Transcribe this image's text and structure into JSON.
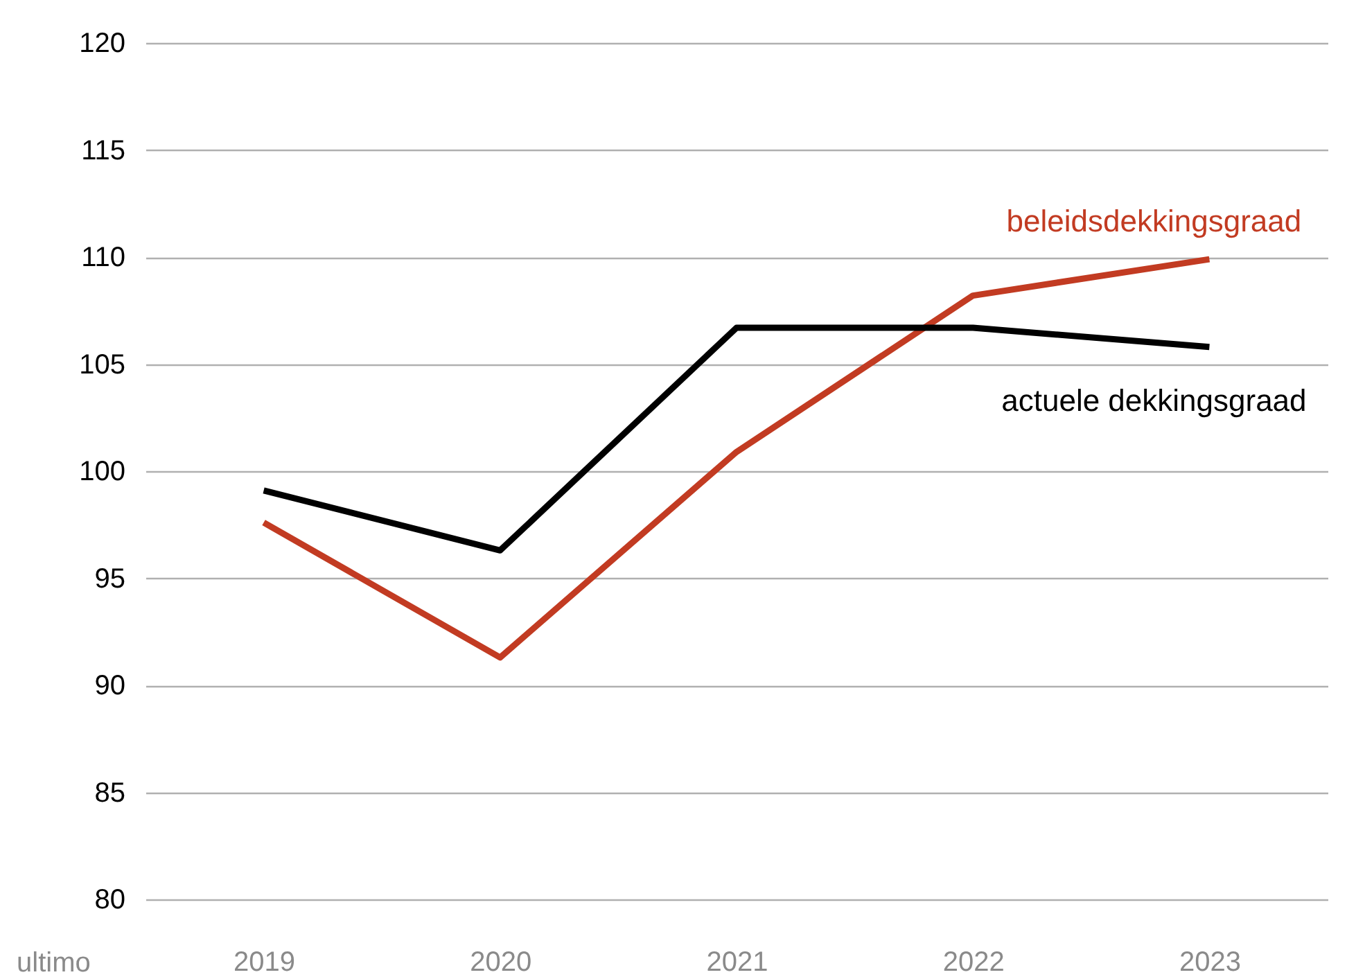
{
  "chart_data": {
    "type": "line",
    "categories": [
      "2019",
      "2020",
      "2021",
      "2022",
      "2023"
    ],
    "series": [
      {
        "name": "beleidsdekkingsgraad",
        "color": "#c23b22",
        "values": [
          97.6,
          91.3,
          100.9,
          108.2,
          109.9
        ]
      },
      {
        "name": "actuele dekkingsgraad",
        "color": "#000000",
        "values": [
          99.1,
          96.3,
          106.7,
          106.7,
          105.8
        ]
      }
    ],
    "ylim": [
      80,
      120
    ],
    "yticks": [
      80,
      85,
      90,
      95,
      100,
      105,
      110,
      115,
      120
    ],
    "grid": "y",
    "annotations": [
      "ultimo"
    ]
  }
}
